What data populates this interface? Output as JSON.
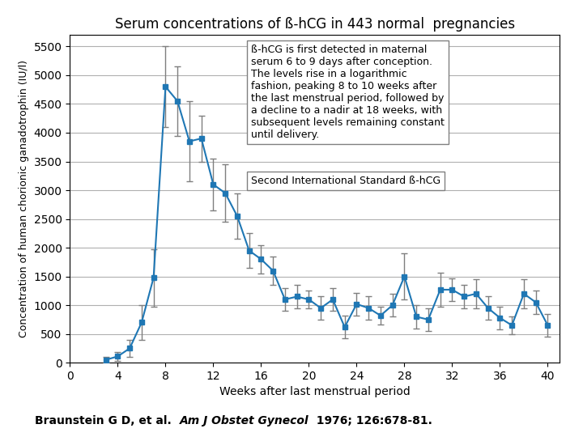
{
  "chart_data": {
    "type": "line",
    "title": "Serum concentrations of ß-hCG in 443 normal  pregnancies",
    "xlabel": "Weeks after last menstrual period",
    "ylabel": "Concentration of human chorionic ganadotrophin (IU/l)",
    "annotations": [
      "ß-hCG is first detected in maternal\nserum 6 to 9 days after conception.\nThe levels rise in a logarithmic\nfashion, peaking 8 to 10 weeks after\nthe last menstrual period, followed by\na decline to a nadir at 18 weeks, with\nsubsequent levels remaining constant\nuntil delivery.",
      "Second International Standard ß-hCG"
    ],
    "citation": [
      "Braunstein G D, et al.  ",
      "Am J Obstet Gynecol",
      "  1976; 126:678-81."
    ],
    "x": [
      3,
      4,
      5,
      6,
      7,
      8,
      9,
      10,
      11,
      12,
      13,
      14,
      15,
      16,
      17,
      18,
      19,
      20,
      21,
      22,
      23,
      24,
      25,
      26,
      27,
      28,
      29,
      30,
      31,
      32,
      33,
      34,
      35,
      36,
      37,
      38,
      39,
      40
    ],
    "values": [
      50,
      110,
      250,
      700,
      1480,
      4800,
      4550,
      3850,
      3900,
      3100,
      2950,
      2550,
      1950,
      1800,
      1600,
      1100,
      1150,
      1100,
      950,
      1100,
      620,
      1020,
      950,
      820,
      1000,
      1500,
      800,
      750,
      1270,
      1270,
      1150,
      1200,
      950,
      780,
      650,
      1200,
      1050,
      650
    ],
    "error": [
      50,
      80,
      150,
      300,
      500,
      700,
      600,
      700,
      400,
      450,
      500,
      400,
      300,
      250,
      250,
      200,
      200,
      150,
      200,
      200,
      200,
      200,
      200,
      150,
      200,
      400,
      200,
      200,
      300,
      200,
      200,
      250,
      200,
      200,
      150,
      250,
      200,
      200
    ],
    "marker": "square",
    "xlim": [
      0,
      41
    ],
    "ylim": [
      0,
      5700
    ],
    "xticks": [
      0,
      4,
      8,
      12,
      16,
      20,
      24,
      28,
      32,
      36,
      40
    ],
    "yticks": [
      0,
      500,
      1000,
      1500,
      2000,
      2500,
      3000,
      3500,
      4000,
      4500,
      5000,
      5500
    ],
    "grid": "y"
  }
}
